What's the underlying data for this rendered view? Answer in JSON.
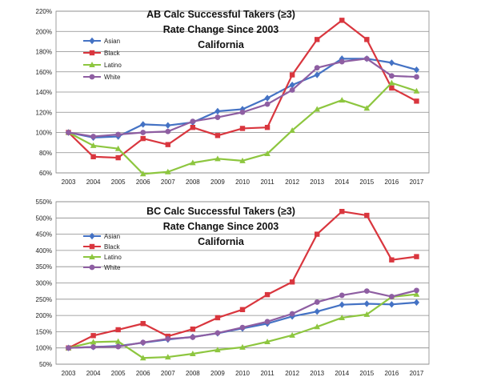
{
  "chart_data": [
    {
      "type": "line",
      "title": [
        "AB Calc Successful Takers (≥3)",
        "Rate Change Since 2003",
        "California"
      ],
      "categories": [
        "2003",
        "2004",
        "2005",
        "2006",
        "2007",
        "2008",
        "2009",
        "2010",
        "2011",
        "2012",
        "2013",
        "2014",
        "2015",
        "2016",
        "2017"
      ],
      "ylim": [
        60,
        220
      ],
      "yticks": [
        60,
        80,
        100,
        120,
        140,
        160,
        180,
        200,
        220
      ],
      "ytick_labels": [
        "60%",
        "80%",
        "100%",
        "120%",
        "140%",
        "160%",
        "180%",
        "200%",
        "220%"
      ],
      "grid": true,
      "legend_position": "left",
      "series": [
        {
          "name": "Asian",
          "color": "#4472C4",
          "marker": "diamond",
          "values": [
            100,
            95,
            96,
            108,
            107,
            110,
            121,
            123,
            134,
            147,
            157,
            173,
            173,
            169,
            162
          ]
        },
        {
          "name": "Black",
          "color": "#D9363E",
          "marker": "square",
          "values": [
            100,
            76,
            75,
            94,
            88,
            105,
            97,
            104,
            105,
            157,
            192,
            211,
            192,
            144,
            131
          ]
        },
        {
          "name": "Latino",
          "color": "#8DC63F",
          "marker": "triangle",
          "values": [
            100,
            87,
            84,
            59,
            61,
            70,
            74,
            72,
            79,
            102,
            123,
            132,
            124,
            149,
            141
          ]
        },
        {
          "name": "White",
          "color": "#8E5EA2",
          "marker": "circle",
          "values": [
            100,
            96,
            98,
            100,
            101,
            111,
            115,
            120,
            128,
            142,
            164,
            170,
            173,
            156,
            155
          ]
        }
      ]
    },
    {
      "type": "line",
      "title": [
        "BC Calc Successful Takers (≥3)",
        "Rate Change Since 2003",
        "California"
      ],
      "categories": [
        "2003",
        "2004",
        "2005",
        "2006",
        "2007",
        "2008",
        "2009",
        "2010",
        "2011",
        "2012",
        "2013",
        "2014",
        "2015",
        "2016",
        "2017"
      ],
      "ylim": [
        50,
        550
      ],
      "yticks": [
        50,
        100,
        150,
        200,
        250,
        300,
        350,
        400,
        450,
        500,
        550
      ],
      "ytick_labels": [
        "50%",
        "100%",
        "150%",
        "200%",
        "250%",
        "300%",
        "350%",
        "400%",
        "450%",
        "500%",
        "550%"
      ],
      "grid": true,
      "legend_position": "left",
      "series": [
        {
          "name": "Asian",
          "color": "#4472C4",
          "marker": "diamond",
          "values": [
            100,
            103,
            106,
            116,
            126,
            134,
            145,
            160,
            175,
            197,
            212,
            233,
            236,
            234,
            240
          ]
        },
        {
          "name": "Black",
          "color": "#D9363E",
          "marker": "square",
          "values": [
            100,
            138,
            156,
            175,
            136,
            158,
            193,
            218,
            264,
            303,
            450,
            520,
            508,
            371,
            381
          ]
        },
        {
          "name": "Latino",
          "color": "#8DC63F",
          "marker": "triangle",
          "values": [
            100,
            118,
            120,
            69,
            72,
            82,
            94,
            102,
            119,
            139,
            165,
            193,
            203,
            257,
            265
          ]
        },
        {
          "name": "White",
          "color": "#8E5EA2",
          "marker": "circle",
          "values": [
            100,
            103,
            104,
            117,
            128,
            133,
            146,
            163,
            181,
            205,
            241,
            262,
            275,
            258,
            277
          ]
        }
      ]
    }
  ]
}
